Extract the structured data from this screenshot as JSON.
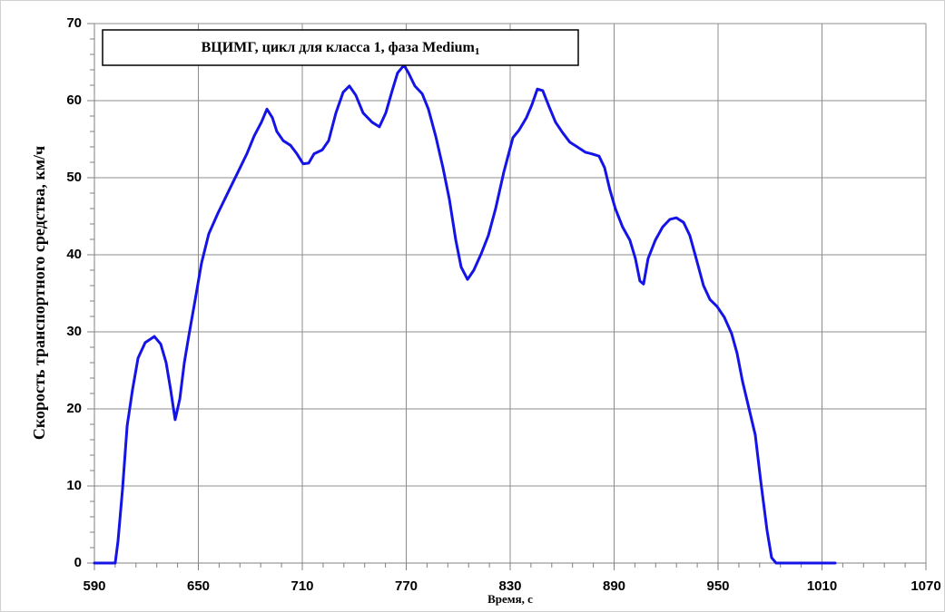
{
  "chart_data": {
    "type": "line",
    "title": "ВЦИМГ, цикл для класса 1, фаза Medium",
    "title_subscript": "1",
    "y_label": "Скорость транспортного средства, км/ч",
    "x_label": "Время, с",
    "xlim": [
      590,
      1070
    ],
    "xticks": [
      590,
      650,
      710,
      770,
      830,
      890,
      950,
      1010,
      1070
    ],
    "ylim": [
      0,
      70
    ],
    "yticks": [
      0,
      10,
      20,
      30,
      40,
      50,
      60,
      70
    ],
    "grid": true,
    "series": [
      {
        "color": "#1414e6",
        "x": [
          590,
          599.4,
          602,
          603.6,
          606.2,
          608.9,
          612,
          615.2,
          619.3,
          624.6,
          628.3,
          631.4,
          634,
          636.6,
          639.3,
          641.9,
          644.5,
          648.2,
          651.8,
          656,
          661.3,
          666.5,
          672.8,
          678,
          682.2,
          686.4,
          689.6,
          692.7,
          695.3,
          699,
          703.2,
          706.9,
          710.5,
          713.7,
          716.8,
          721.5,
          725.2,
          729.4,
          733.6,
          737.2,
          740.9,
          745.1,
          750.3,
          754.5,
          758.2,
          761.9,
          765,
          768.7,
          771.3,
          775,
          779.2,
          782.8,
          787,
          791.2,
          794.9,
          798.6,
          801.7,
          805.4,
          809,
          813.2,
          817.4,
          821.6,
          826.3,
          831.6,
          835.2,
          839.4,
          842.6,
          845.7,
          848.8,
          852.5,
          856.2,
          860.4,
          864.5,
          868.7,
          873.5,
          877.1,
          881.3,
          884.5,
          887.6,
          890.7,
          894.9,
          899.1,
          902.3,
          904.9,
          907,
          909.6,
          913.8,
          918,
          922.2,
          925.9,
          930.1,
          933.7,
          937.4,
          941.6,
          945.3,
          949.4,
          953.6,
          957.8,
          961,
          964.1,
          967.8,
          971.5,
          974.6,
          978.3,
          980.9,
          983.5,
          1017.6
        ],
        "values": [
          0,
          0,
          0,
          2.8,
          9.5,
          17.8,
          22.5,
          26.6,
          28.6,
          29.4,
          28.4,
          26,
          22.5,
          18.6,
          21.3,
          26,
          29.5,
          34.2,
          38.9,
          42.7,
          45.4,
          47.8,
          50.7,
          53.1,
          55.4,
          57.2,
          58.9,
          57.8,
          56,
          54.8,
          54.2,
          53.1,
          51.8,
          51.9,
          53.1,
          53.6,
          54.8,
          58.4,
          61.1,
          61.9,
          60.7,
          58.4,
          57.2,
          56.6,
          58.4,
          61.3,
          63.6,
          64.6,
          63.6,
          61.9,
          60.9,
          58.9,
          55.4,
          51.3,
          47.2,
          41.9,
          38.4,
          36.8,
          38,
          40.1,
          42.5,
          46,
          50.7,
          55.2,
          56.2,
          57.8,
          59.5,
          61.5,
          61.3,
          59.2,
          57.2,
          55.8,
          54.6,
          54,
          53.3,
          53.1,
          52.8,
          51.3,
          48.4,
          46,
          43.6,
          41.9,
          39.5,
          36.6,
          36.2,
          39.5,
          41.9,
          43.6,
          44.6,
          44.8,
          44.2,
          42.5,
          39.5,
          36,
          34.2,
          33.3,
          31.9,
          29.8,
          27.2,
          23.6,
          20.1,
          16.6,
          10.7,
          4.2,
          0.7,
          0,
          0
        ]
      }
    ]
  }
}
